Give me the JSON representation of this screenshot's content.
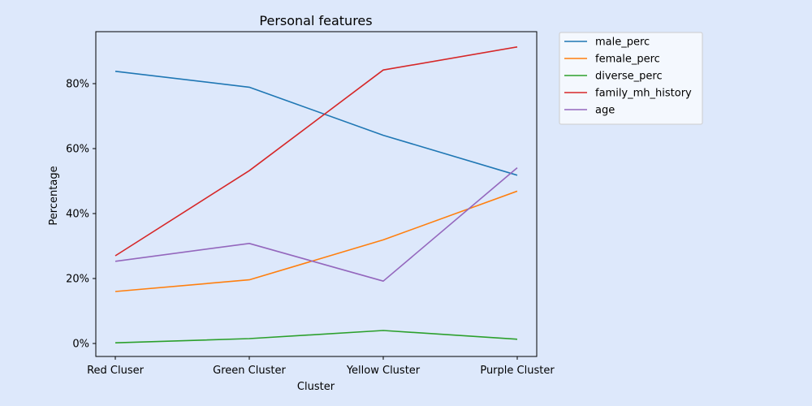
{
  "chart_data": {
    "type": "line",
    "title": "Personal features",
    "xlabel": "Cluster",
    "ylabel": "Percentage",
    "categories": [
      "Red Cluser",
      "Green Cluster",
      "Yellow Cluster",
      "Purple Cluster"
    ],
    "ylim": [
      -0.04,
      0.96
    ],
    "yticks": [
      0.0,
      0.2,
      0.4,
      0.6,
      0.8
    ],
    "ytick_labels": [
      "0%",
      "20%",
      "40%",
      "60%",
      "80%"
    ],
    "grid": false,
    "legend_position": "outside-top-right",
    "series": [
      {
        "name": "male_perc",
        "color": "#1f77b4",
        "values": [
          0.838,
          0.789,
          0.641,
          0.518
        ]
      },
      {
        "name": "female_perc",
        "color": "#ff7f0e",
        "values": [
          0.16,
          0.196,
          0.319,
          0.469
        ]
      },
      {
        "name": "diverse_perc",
        "color": "#2ca02c",
        "values": [
          0.002,
          0.015,
          0.04,
          0.013
        ]
      },
      {
        "name": "family_mh_history",
        "color": "#d62728",
        "values": [
          0.27,
          0.532,
          0.842,
          0.913
        ]
      },
      {
        "name": "age",
        "color": "#9467bd",
        "values": [
          0.253,
          0.308,
          0.192,
          0.541
        ]
      }
    ]
  },
  "colors": {
    "page_background": "#dde8fb",
    "plot_background": "#dde8fb",
    "legend_background": "#f4f8fe",
    "axis": "#000000"
  }
}
